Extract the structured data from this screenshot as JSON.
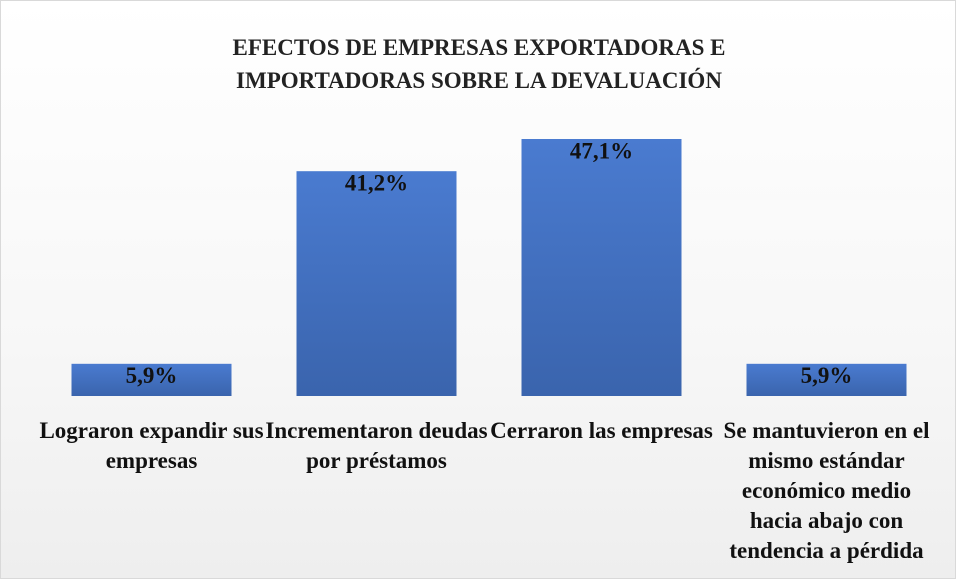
{
  "chart_data": {
    "type": "bar",
    "title": "EFECTOS DE EMPRESAS EXPORTADORAS E IMPORTADORAS SOBRE LA DEVALUACIÓN",
    "categories": [
      "Lograron expandir sus empresas",
      "Incrementaron deudas por préstamos",
      "Cerraron las empresas",
      "Se mantuvieron en el mismo estándar económico medio hacia abajo con tendencia a pérdida"
    ],
    "values": [
      5.9,
      41.2,
      47.1,
      5.9
    ],
    "value_labels": [
      "5,9%",
      "41,2%",
      "47,1%",
      "5,9%"
    ],
    "color": "#4472c4"
  }
}
